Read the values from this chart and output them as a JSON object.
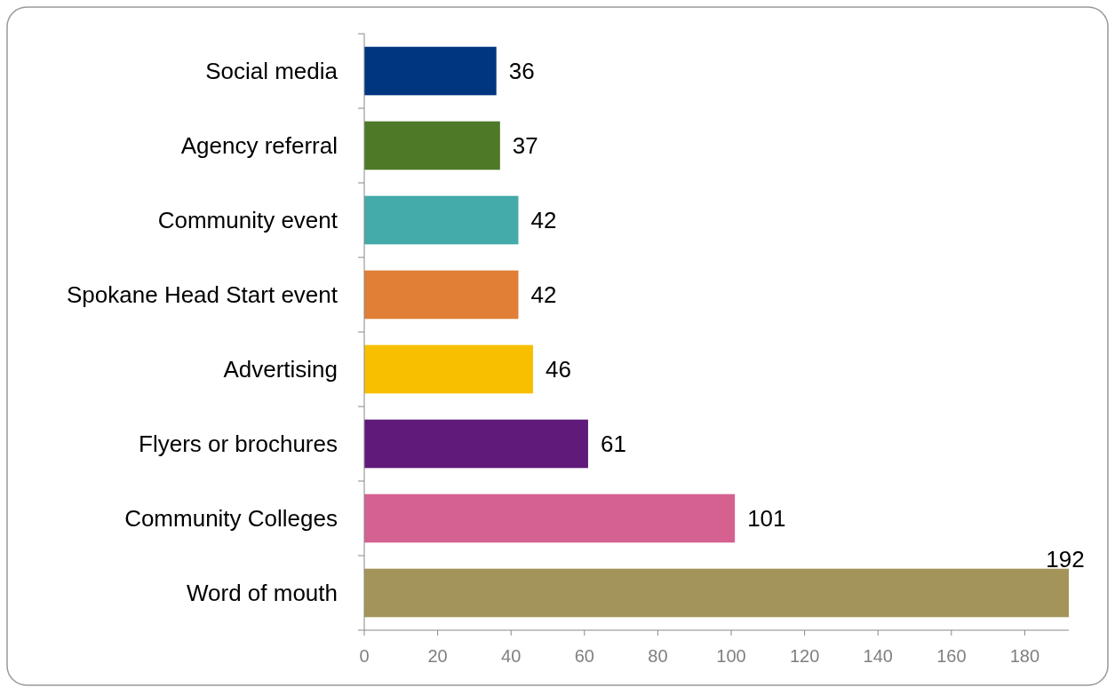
{
  "chart_data": {
    "type": "bar",
    "orientation": "horizontal",
    "categories": [
      "Social media",
      "Agency referral",
      "Community event",
      "Spokane Head Start event",
      "Advertising",
      "Flyers or brochures",
      "Community Colleges",
      "Word of mouth"
    ],
    "values": [
      36,
      37,
      42,
      42,
      46,
      61,
      101,
      192
    ],
    "colors": [
      "#003580",
      "#4e7a28",
      "#44aaaa",
      "#e07f35",
      "#f8bf00",
      "#5f1a7a",
      "#d46190",
      "#a39459"
    ],
    "xlim": [
      0,
      192
    ],
    "xticks": [
      0,
      20,
      40,
      60,
      80,
      100,
      120,
      140,
      160,
      180
    ],
    "data_labels": true
  }
}
